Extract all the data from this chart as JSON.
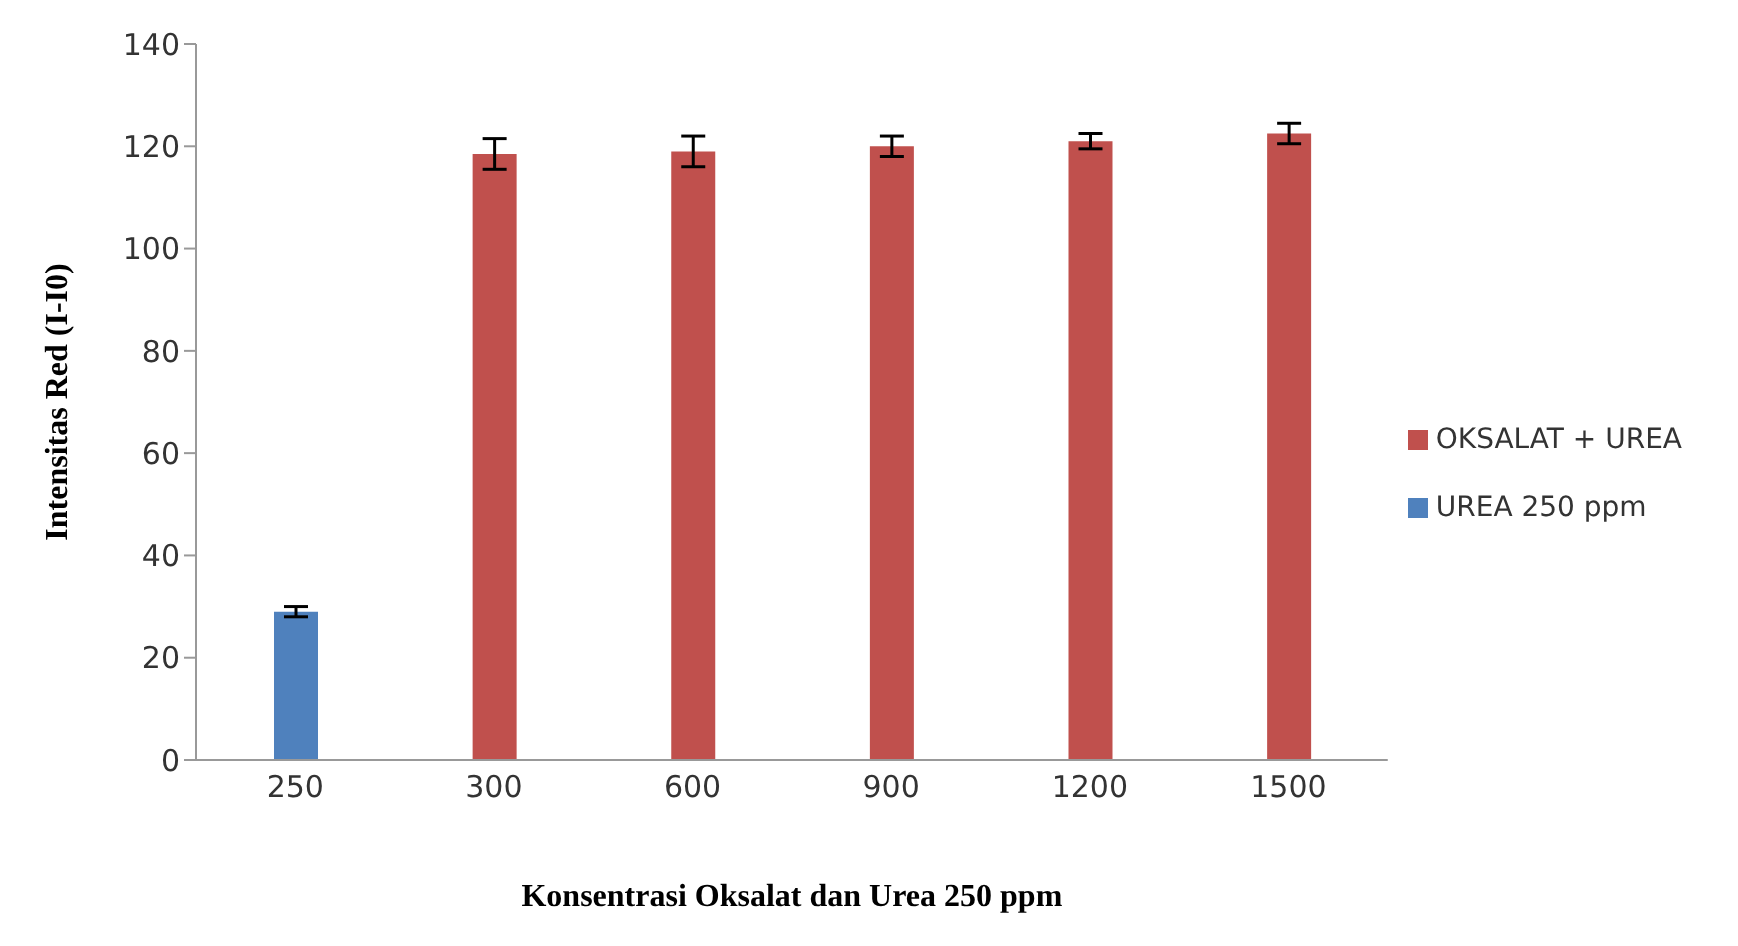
{
  "chart_data": {
    "type": "bar",
    "xlabel": "Konsentrasi Oksalat dan Urea 250 ppm",
    "ylabel": "Intensitas Red (I-I0)",
    "categories": [
      "250",
      "300",
      "600",
      "900",
      "1200",
      "1500"
    ],
    "series": [
      {
        "name": "UREA 250 ppm",
        "color": "#4f81bd",
        "values": [
          29,
          null,
          null,
          null,
          null,
          null
        ],
        "errors": [
          1,
          null,
          null,
          null,
          null,
          null
        ]
      },
      {
        "name": "OKSALAT + UREA",
        "color": "#c0504d",
        "values": [
          null,
          118.5,
          119,
          120,
          121,
          122.5
        ],
        "errors": [
          null,
          3,
          3,
          2,
          1.5,
          2
        ]
      }
    ],
    "ylim": [
      0,
      140
    ],
    "yticks": [
      0,
      20,
      40,
      60,
      80,
      100,
      120,
      140
    ],
    "grid": false,
    "legend": "right"
  }
}
